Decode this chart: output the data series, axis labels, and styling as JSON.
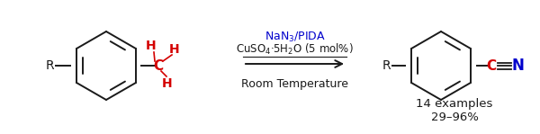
{
  "figsize": [
    6.0,
    1.49
  ],
  "dpi": 100,
  "bg_color": "#ffffff",
  "black": "#1a1a1a",
  "red": "#d40000",
  "blue": "#0000cc",
  "reagent_line1": "NaN$_3$/PIDA",
  "reagent_line2": "CuSO$_4$·5H$_2$O (5 mol%)",
  "reagent_line3": "Room Temperature",
  "examples_text": "14 examples",
  "yield_text": "29–96%"
}
